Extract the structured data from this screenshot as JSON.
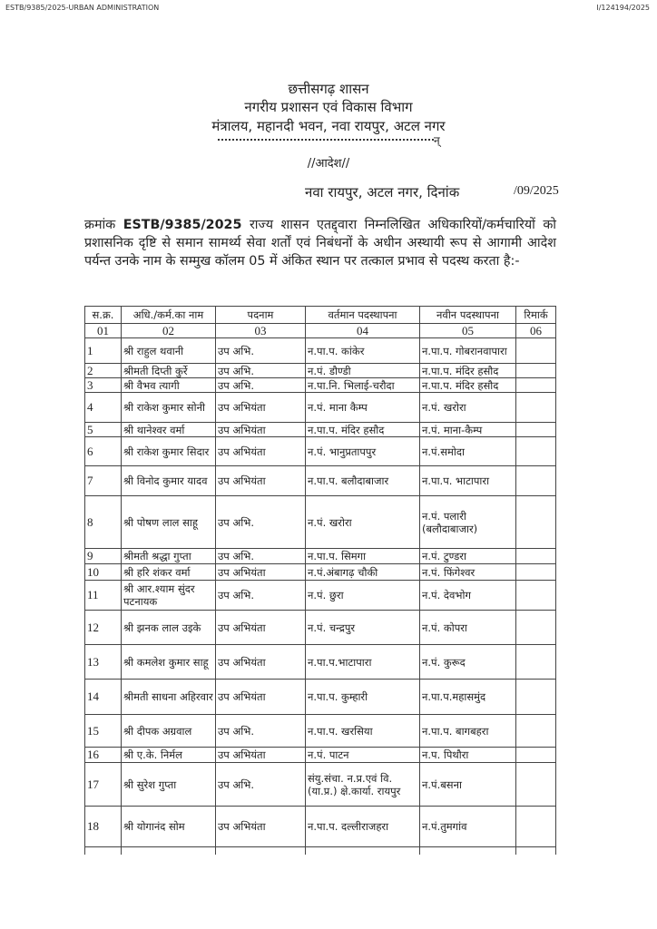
{
  "top_left_ref": "ESTB/9385/2025-URBAN ADMINISTRATION",
  "top_right_ref": "I/124194/2025",
  "letterhead": {
    "line1": "छत्तीसगढ़ शासन",
    "line2": "नगरीय प्रशासन एवं विकास विभाग",
    "line3": "मंत्रालय, महानदी भवन, नवा रायपुर, अटल नगर",
    "rule_end": "न्"
  },
  "order_title": "//आदेश//",
  "place": "नवा रायपुर, अटल नगर, दिनांक",
  "date": "/09/2025",
  "para": {
    "prefix": "क्रमांक ",
    "number": "ESTB/9385/2025",
    "text": " राज्य शासन एतद्द्वारा निम्नलिखित अधिकारियों/कर्मचारियों को प्रशासनिक दृष्टि से समान सामर्थ्य सेवा शर्तों एवं निबंधनों के अधीन अस्थायी रूप से आगामी आदेश पर्यन्त उनके नाम के सम्मुख कॉलम 05 में अंकित स्थान पर तत्काल प्रभाव से पदस्थ करता है:-"
  },
  "table": {
    "headers": [
      "स.क्र.",
      "अधि./कर्म.का नाम",
      "पदनाम",
      "वर्तमान पदस्थापना",
      "नवीन पदस्थापना",
      "रिमार्क"
    ],
    "col_numbers": [
      "01",
      "02",
      "03",
      "04",
      "05",
      "06"
    ],
    "rows": [
      [
        "1",
        "श्री राहुल थवानी",
        "उप अभि.",
        "न.पा.प. कांकेर",
        "न.पा.प. गोबरानवापारा",
        ""
      ],
      [
        "2",
        "श्रीमती दिप्ती कुर्रे",
        "उप अभि.",
        "न.पं. डौण्डी",
        "न.पा.प. मंदिर हसौद",
        ""
      ],
      [
        "3",
        "श्री वैभव त्यागी",
        "उप अभि.",
        "न.पा.नि. भिलाई-चरौदा",
        "न.पा.प. मंदिर हसौद",
        ""
      ],
      [
        "4",
        "श्री राकेश कुमार सोनी",
        "उप अभियंता",
        "न.पं. माना कैम्प",
        "न.पं. खरोरा",
        ""
      ],
      [
        "5",
        "श्री थानेश्वर वर्मा",
        "उप अभियंता",
        "न.पा.प. मंदिर हसौद",
        "न.पं. माना-कैम्प",
        ""
      ],
      [
        "6",
        "श्री राकेश कुमार सिदार",
        "उप अभियंता",
        "न.पं. भानुप्रतापपुर",
        "न.पं.समोदा",
        ""
      ],
      [
        "7",
        "श्री विनोद कुमार यादव",
        "उप अभियंता",
        "न.पा.प. बलौदाबाजार",
        "न.पा.प. भाटापारा",
        ""
      ],
      [
        "8",
        "श्री पोषण लाल साहू",
        "उप अभि.",
        "न.पं. खरोरा",
        "न.पं. पलारी (बलौदाबाजार)",
        ""
      ],
      [
        "9",
        "श्रीमती श्रद्धा गुप्ता",
        "उप अभि.",
        "न.पा.प. सिमगा",
        "न.पं. टुण्डरा",
        ""
      ],
      [
        "10",
        "श्री हरि शंकर वर्मा",
        "उप अभियंता",
        "न.पं.अंबागढ़ चौकी",
        "न.पं. फिंगेश्वर",
        ""
      ],
      [
        "11",
        "श्री आर.श्याम सुंदर पटनायक",
        "उप अभि.",
        "न.पं. छुरा",
        "न.पं. देवभोग",
        ""
      ],
      [
        "12",
        "श्री झनक लाल उइके",
        "उप अभियंता",
        "न.पं. चन्द्रपुर",
        "न.पं. कोपरा",
        ""
      ],
      [
        "13",
        "श्री कमलेश कुमार साहू",
        "उप अभियंता",
        "न.पा.प.भाटापारा",
        "न.पं. कुरूद",
        ""
      ],
      [
        "14",
        "श्रीमती साधना अहिरवार",
        "उप अभियंता",
        "न.पा.प. कुम्हारी",
        "न.पा.प.महासमुंद",
        ""
      ],
      [
        "15",
        "श्री दीपक अग्रवाल",
        "उप अभि.",
        "न.पा.प. खरसिया",
        "न.पा.प. बागबहरा",
        ""
      ],
      [
        "16",
        "श्री ए.के. निर्मल",
        "उप अभियंता",
        "न.पं. पाटन",
        "न.प. पिथौरा",
        ""
      ],
      [
        "17",
        "श्री सुरेश गुप्ता",
        "उप अभि.",
        "संयु.संचा. न.प्र.एवं वि. (या.प्र.) क्षे.कार्या. रायपुर",
        "न.पं.बसना",
        ""
      ],
      [
        "18",
        "श्री योगानंद सोम",
        "उप अभियंता",
        "न.पा.प. दल्लीराजहरा",
        "न.पं.तुमगांव",
        ""
      ]
    ]
  }
}
